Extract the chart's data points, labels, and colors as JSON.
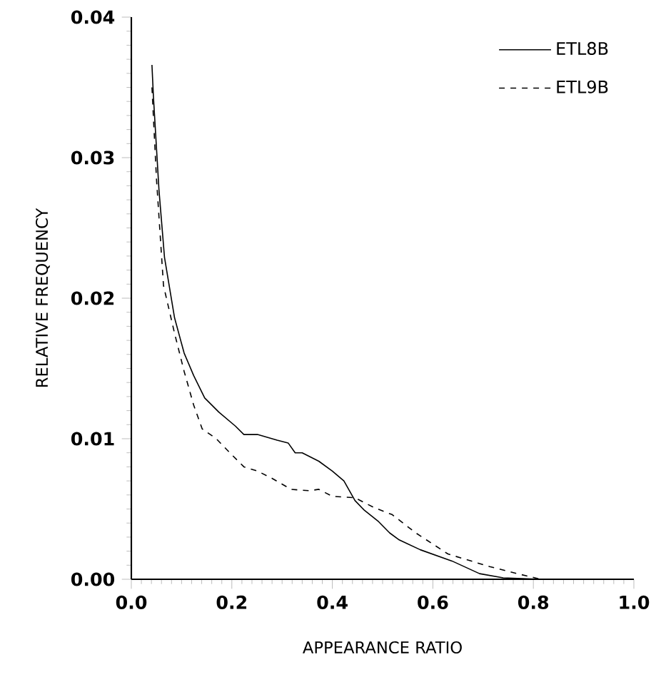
{
  "chart_data": {
    "type": "line",
    "xlabel": "APPEARANCE RATIO",
    "ylabel": "RELATIVE FREQUENCY",
    "xlim": [
      0,
      1
    ],
    "ylim": [
      0,
      0.04
    ],
    "xticks": [
      {
        "value": 0,
        "label": "0.0"
      },
      {
        "value": 0.2,
        "label": "0.2"
      },
      {
        "value": 0.4,
        "label": "0.4"
      },
      {
        "value": 0.6,
        "label": "0.6"
      },
      {
        "value": 0.8,
        "label": "0.8"
      },
      {
        "value": 1,
        "label": "1.0"
      }
    ],
    "yticks": [
      {
        "value": 0,
        "label": "0.00"
      },
      {
        "value": 0.01,
        "label": "0.01"
      },
      {
        "value": 0.02,
        "label": "0.02"
      },
      {
        "value": 0.03,
        "label": "0.03"
      },
      {
        "value": 0.04,
        "label": "0.04"
      }
    ],
    "legend": "top right",
    "grid": false,
    "marker": "none",
    "series": [
      {
        "name": "ETL8B",
        "color": "#000000",
        "line_style": "solid",
        "x": [
          0.041,
          0.044,
          0.055,
          0.066,
          0.086,
          0.105,
          0.124,
          0.146,
          0.174,
          0.207,
          0.224,
          0.251,
          0.29,
          0.312,
          0.326,
          0.34,
          0.373,
          0.4,
          0.423,
          0.445,
          0.464,
          0.492,
          0.514,
          0.533,
          0.575,
          0.638,
          0.693,
          0.74,
          0.815,
          0.99
        ],
        "values": [
          0.0366,
          0.0343,
          0.0277,
          0.0229,
          0.0186,
          0.0161,
          0.0145,
          0.0129,
          0.0119,
          0.0109,
          0.0103,
          0.0103,
          0.0099,
          0.0097,
          0.009,
          0.009,
          0.0084,
          0.0077,
          0.007,
          0.0056,
          0.0049,
          0.0041,
          0.0033,
          0.0028,
          0.0021,
          0.0013,
          0.0004,
          0.0001,
          0,
          0
        ]
      },
      {
        "name": "ETL9B",
        "color": "#000000",
        "line_style": "dashed",
        "x": [
          0.041,
          0.05,
          0.064,
          0.086,
          0.105,
          0.124,
          0.141,
          0.169,
          0.196,
          0.224,
          0.251,
          0.279,
          0.318,
          0.354,
          0.373,
          0.4,
          0.445,
          0.483,
          0.519,
          0.566,
          0.63,
          0.713,
          0.768,
          0.815,
          0.99
        ],
        "values": [
          0.035,
          0.0285,
          0.0209,
          0.0175,
          0.0148,
          0.0124,
          0.0107,
          0.01,
          0.009,
          0.008,
          0.0077,
          0.0072,
          0.0064,
          0.0063,
          0.0064,
          0.0059,
          0.0058,
          0.0051,
          0.0046,
          0.0033,
          0.0018,
          0.0009,
          0.0004,
          0,
          0
        ]
      }
    ]
  }
}
